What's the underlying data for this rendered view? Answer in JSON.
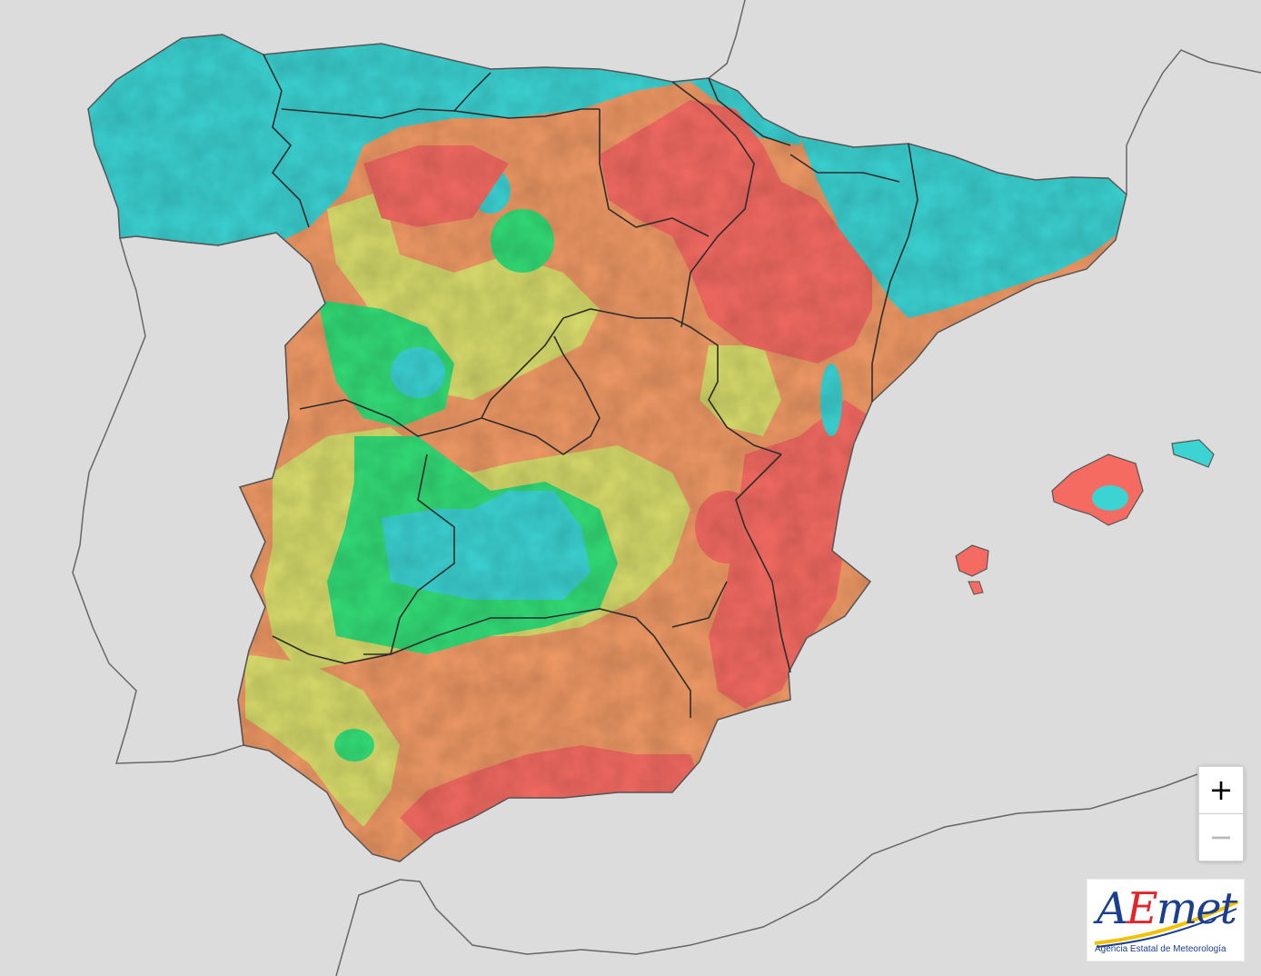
{
  "zoom": {
    "in_label": "+",
    "out_label": "−"
  },
  "logo": {
    "wordmark": "AEmet",
    "tagline": "Agencia Estatal de Meteorología"
  },
  "palette": {
    "sea": "#dcdcdc",
    "land_outline": "#555555",
    "cyan": "#3cd3d3",
    "green": "#33dd77",
    "yellow": "#d9dd6c",
    "orange": "#f19a66",
    "red": "#f56b62",
    "logo_blue": "#1a3f8f",
    "logo_red": "#e3262b",
    "logo_yellow": "#f2c200"
  }
}
